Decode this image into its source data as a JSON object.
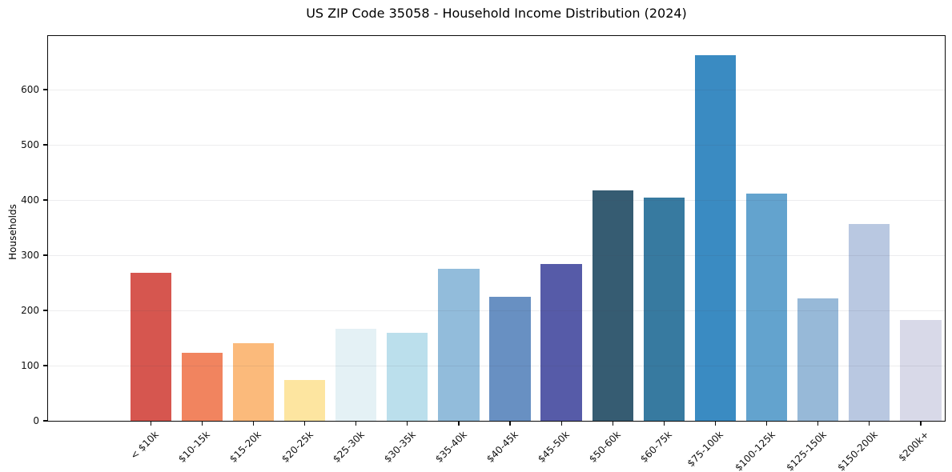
{
  "chart_data": {
    "type": "bar",
    "title": "US ZIP Code 35058 - Household Income Distribution (2024)",
    "xlabel": "",
    "ylabel": "Households",
    "categories": [
      "< $10k",
      "$10-15k",
      "$15-20k",
      "$20-25k",
      "$25-30k",
      "$30-35k",
      "$35-40k",
      "$40-45k",
      "$45-50k",
      "$50-60k",
      "$60-75k",
      "$75-100k",
      "$100-125k",
      "$125-150k",
      "$150-200k",
      "$200k+"
    ],
    "values": [
      268,
      123,
      141,
      74,
      166,
      160,
      276,
      225,
      284,
      418,
      404,
      663,
      411,
      222,
      356,
      182
    ],
    "bar_colors": [
      "#d6564f",
      "#f1845f",
      "#fbba7b",
      "#fde5a0",
      "#e4f1f5",
      "#bbdfec",
      "#92bcdb",
      "#6890c2",
      "#565ba8",
      "#365c72",
      "#377aa0",
      "#3a8bc2",
      "#63a3ce",
      "#97b9d8",
      "#b9c8e1",
      "#d8d9e8"
    ],
    "ylim": [
      0,
      700
    ],
    "yticks": [
      0,
      100,
      200,
      300,
      400,
      500,
      600
    ],
    "grid": "horizontal-light",
    "legend": "none",
    "background_color": "#ffffff",
    "spine_color": "#0a0a0a",
    "gridline_color": "#ececef",
    "tick_label_color": "#111111",
    "xtick_rotation_deg": 45
  }
}
